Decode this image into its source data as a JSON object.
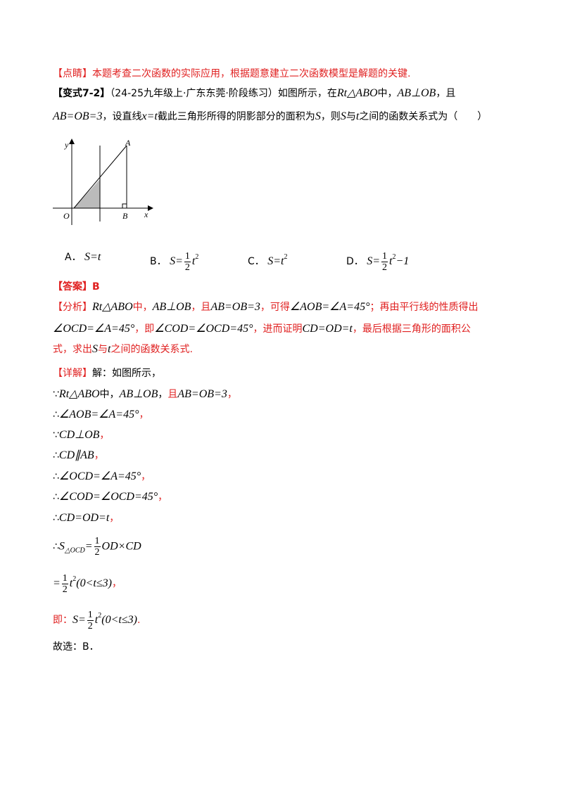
{
  "comment": {
    "label": "【点睛】",
    "text": "本题考查二次函数的实际应用，根据题意建立二次函数模型是解题的关键."
  },
  "question": {
    "label": "【变式7-2】",
    "line1": [
      "（24-25九年级上·广东东莞·阶段练习）如图所示，在",
      "Rt△ABO",
      "中，",
      "AB⊥OB",
      "，且"
    ],
    "line2": [
      "AB=OB=3",
      "，设直线",
      "x=t",
      "截此三角形所得的阴影部分的面积为",
      "S",
      "，则",
      "S",
      "与",
      "t",
      "之间的函数关系式为（　　）"
    ]
  },
  "figure": {
    "labels": [
      "y",
      "A",
      "O",
      "B",
      "x"
    ]
  },
  "options": [
    {
      "label": "A．",
      "parts": [
        "S=t"
      ]
    },
    {
      "label": "B．",
      "parts": [
        "S=",
        "1",
        "2",
        "t",
        "2"
      ]
    },
    {
      "label": "C．",
      "parts": [
        "S=t",
        "2"
      ]
    },
    {
      "label": "D．",
      "parts": [
        "S=",
        "1",
        "2",
        "t",
        "2",
        "−1"
      ]
    }
  ],
  "answer": {
    "label": "【答案】",
    "text": "B"
  },
  "analysis": {
    "label": "【分析】",
    "line1": [
      "Rt△ABO",
      "中，",
      "AB⊥OB",
      "，且",
      "AB=OB=3",
      "，可得",
      "∠AOB=∠A=45°",
      "；再由平行线的性质得出"
    ],
    "line2": [
      "∠OCD=∠A=45°",
      "，即",
      "∠COD=∠OCD=45°",
      "，进而证明",
      "CD=OD=t",
      "，最后根据三角形的面积公"
    ],
    "line3": [
      "式，求出",
      "S",
      "与",
      "t",
      "之间的函数关系式."
    ]
  },
  "detail": {
    "label": "【详解】",
    "lines": [
      [
        "解：如图所示，"
      ],
      [
        "∵",
        "Rt△ABO",
        "中，",
        "AB⊥OB",
        "，",
        "且",
        "AB=OB=3",
        "，"
      ],
      [
        "∴",
        "∠AOB=∠A=45°",
        "，"
      ],
      [
        "∵",
        "CD⊥OB",
        "，"
      ],
      [
        "∴",
        "CD∥AB",
        "，"
      ],
      [
        "∴",
        "∠OCD=∠A=45°",
        "，"
      ],
      [
        "∴",
        "∠COD=∠OCD=45°",
        "，"
      ],
      [
        "∴",
        "CD=OD=t",
        "，"
      ],
      [
        "∴",
        "S",
        "△OCD",
        "=",
        "1",
        "2",
        "OD×CD"
      ],
      [
        "=",
        "1",
        "2",
        "t",
        "2",
        "(0<t≤3)",
        "，"
      ],
      [
        "即：",
        "S=",
        "1",
        "2",
        "t",
        "2",
        "(0<t≤3)",
        "."
      ],
      [
        "故选：B．"
      ]
    ]
  }
}
